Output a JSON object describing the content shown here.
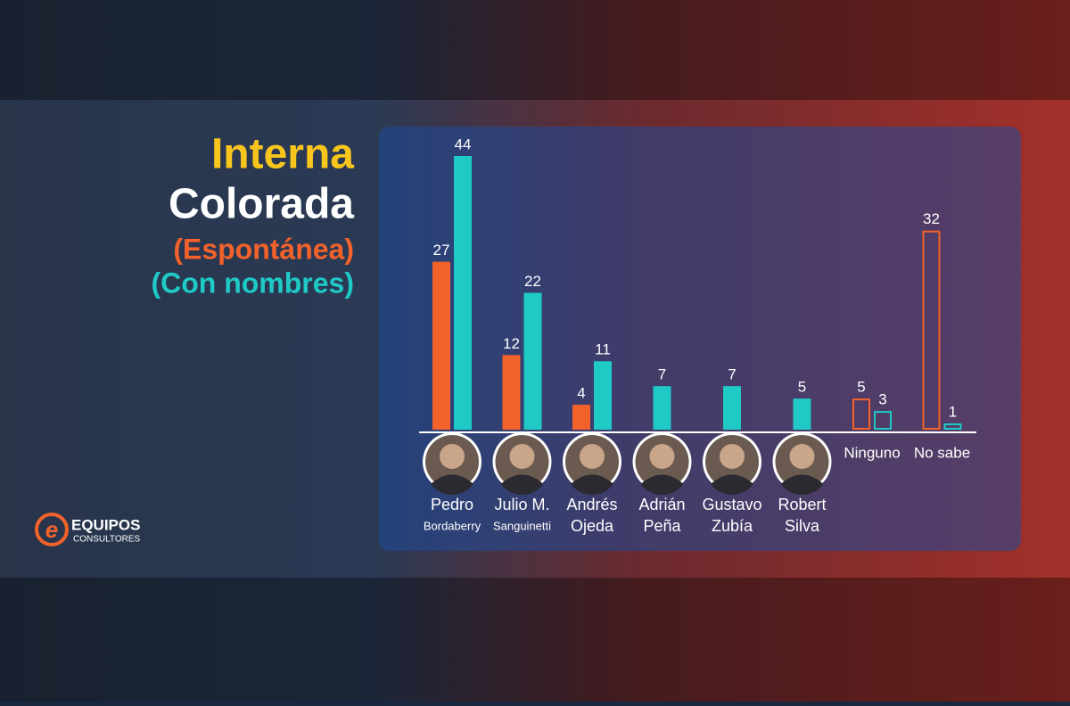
{
  "chart_data": {
    "type": "bar",
    "title": [
      "Interna",
      "Colorada"
    ],
    "categories": [
      [
        "Pedro",
        "Bordaberry"
      ],
      [
        "Julio M.",
        "Sanguinetti"
      ],
      [
        "Andrés",
        "Ojeda"
      ],
      [
        "Adrián",
        "Peña"
      ],
      [
        "Gustavo",
        "Zubía"
      ],
      [
        "Robert",
        "Silva"
      ],
      [
        "Ninguno"
      ],
      [
        "No sabe"
      ]
    ],
    "hollow": [
      false,
      false,
      false,
      false,
      false,
      false,
      true,
      true
    ],
    "series": [
      {
        "name": "(Espontánea)",
        "color": "#f2622a",
        "values": [
          27,
          12,
          4,
          null,
          null,
          null,
          5,
          32
        ]
      },
      {
        "name": "(Con nombres)",
        "color": "#1fc9c6",
        "values": [
          44,
          22,
          11,
          7,
          7,
          5,
          3,
          1
        ]
      }
    ]
  },
  "logo": {
    "name": "EQUIPOS",
    "subtitle": "CONSULTORES"
  }
}
